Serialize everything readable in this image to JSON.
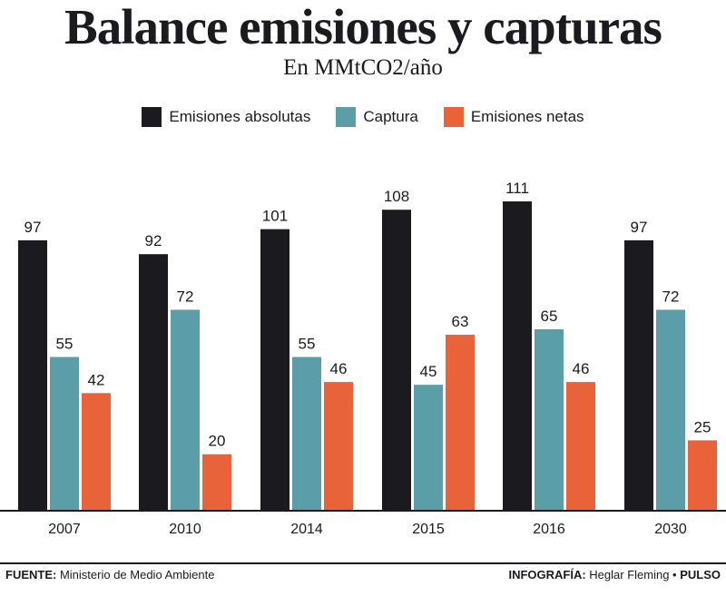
{
  "header": {
    "title": "Balance emisiones y capturas",
    "subtitle": "En MMtCO2/año"
  },
  "legend": [
    {
      "label": "Emisiones absolutas",
      "color": "#1b1b1f"
    },
    {
      "label": "Captura",
      "color": "#5b9ea7"
    },
    {
      "label": "Emisiones netas",
      "color": "#e8623a"
    }
  ],
  "chart_data": {
    "type": "bar",
    "title": "Balance emisiones y capturas",
    "subtitle": "En MMtCO2/año",
    "categories": [
      "2007",
      "2010",
      "2014",
      "2015",
      "2016",
      "2030"
    ],
    "series": [
      {
        "name": "Emisiones absolutas",
        "color": "#1b1b1f",
        "values": [
          97,
          92,
          101,
          108,
          111,
          97
        ]
      },
      {
        "name": "Captura",
        "color": "#5b9ea7",
        "values": [
          55,
          72,
          55,
          45,
          65,
          72
        ]
      },
      {
        "name": "Emisiones netas",
        "color": "#e8623a",
        "values": [
          42,
          20,
          46,
          63,
          46,
          25
        ]
      }
    ],
    "ylim": [
      0,
      111
    ],
    "grid": false,
    "legend_position": "top-center",
    "data_labels": true
  },
  "footer": {
    "source_prefix": "FUENTE:",
    "source_text": " Ministerio de Medio Ambiente",
    "credit_prefix": "INFOGRAFÍA:",
    "credit_text": " Heglar Fleming • ",
    "brand": "PULSO"
  }
}
